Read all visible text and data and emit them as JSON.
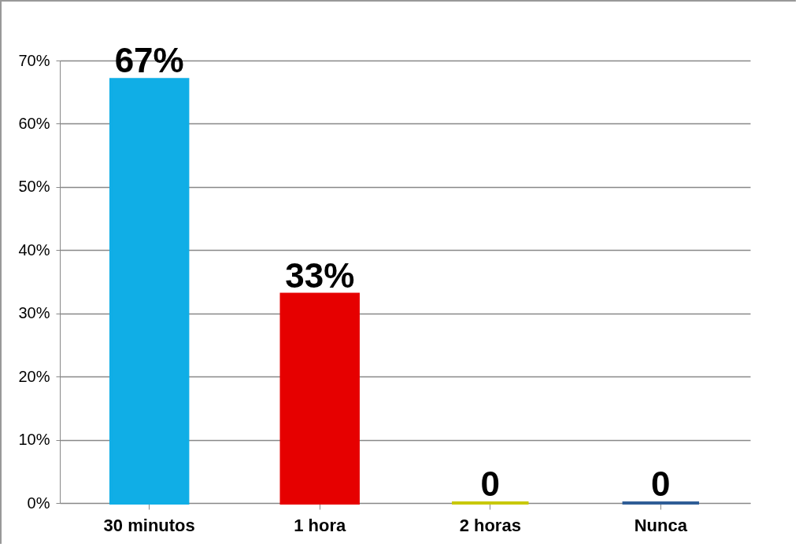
{
  "chart_data": {
    "type": "bar",
    "categories": [
      "30 minutos",
      "1 hora",
      "2 horas",
      "Nunca"
    ],
    "values": [
      67,
      33,
      0,
      0
    ],
    "colors": [
      "#10aee6",
      "#e60000",
      "#c8c800",
      "#2f5d96"
    ],
    "value_labels": [
      "67%",
      "33%",
      "0",
      "0"
    ],
    "ylim": [
      0,
      70
    ],
    "yticks": [
      {
        "value": 0,
        "label": "0%"
      },
      {
        "value": 10,
        "label": "10%"
      },
      {
        "value": 20,
        "label": "20%"
      },
      {
        "value": 30,
        "label": "30%"
      },
      {
        "value": 40,
        "label": "40%"
      },
      {
        "value": 50,
        "label": "50%"
      },
      {
        "value": 60,
        "label": "60%"
      },
      {
        "value": 70,
        "label": "70%"
      }
    ],
    "grid": true
  }
}
